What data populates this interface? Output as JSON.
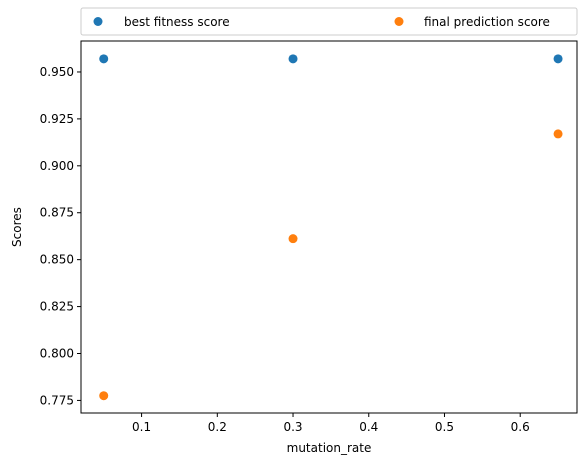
{
  "chart_data": {
    "type": "scatter",
    "title": "",
    "xlabel": "mutation_rate",
    "ylabel": "Scores",
    "xlim": [
      0.02,
      0.675
    ],
    "ylim": [
      0.7683,
      0.9665
    ],
    "xticks": [
      0.1,
      0.2,
      0.3,
      0.4,
      0.5,
      0.6
    ],
    "xtick_labels": [
      "0.1",
      "0.2",
      "0.3",
      "0.4",
      "0.5",
      "0.6"
    ],
    "yticks": [
      0.775,
      0.8,
      0.825,
      0.85,
      0.875,
      0.9,
      0.925,
      0.95
    ],
    "ytick_labels": [
      "0.775",
      "0.800",
      "0.825",
      "0.850",
      "0.875",
      "0.900",
      "0.925",
      "0.950"
    ],
    "grid": false,
    "legend_position": "top, above plot, two columns",
    "series": [
      {
        "name": "best fitness score",
        "color": "#1f77b4",
        "points": [
          [
            0.05,
            0.957
          ],
          [
            0.3,
            0.957
          ],
          [
            0.65,
            0.957
          ]
        ]
      },
      {
        "name": "final prediction score",
        "color": "#ff7f0e",
        "points": [
          [
            0.05,
            0.7775
          ],
          [
            0.3,
            0.8612
          ],
          [
            0.65,
            0.917
          ]
        ]
      }
    ]
  }
}
